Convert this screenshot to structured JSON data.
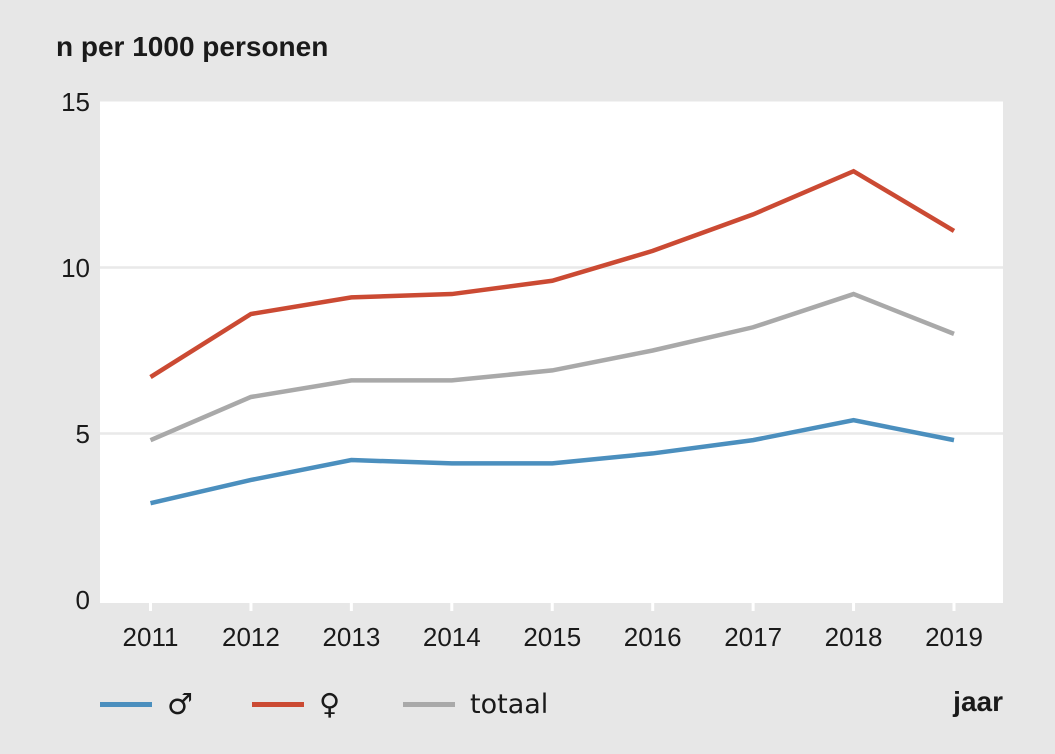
{
  "chart_data": {
    "type": "line",
    "title": "n per 1000 personen",
    "xlabel": "jaar",
    "ylabel": "",
    "x": [
      2011,
      2012,
      2013,
      2014,
      2015,
      2016,
      2017,
      2018,
      2019
    ],
    "series": [
      {
        "name": "♂",
        "description": "mannen",
        "color": "#4b8fbe",
        "values": [
          2.9,
          3.6,
          4.2,
          4.1,
          4.1,
          4.4,
          4.8,
          5.4,
          4.8
        ]
      },
      {
        "name": "♀",
        "description": "vrouwen",
        "color": "#cb4a33",
        "values": [
          6.7,
          8.6,
          9.1,
          9.2,
          9.6,
          10.5,
          11.6,
          12.9,
          11.1
        ]
      },
      {
        "name": "totaal",
        "description": "totaal",
        "color": "#a9a9a9",
        "values": [
          4.8,
          6.1,
          6.6,
          6.6,
          6.9,
          7.5,
          8.2,
          9.2,
          8.0
        ]
      }
    ],
    "ylim": [
      0,
      15
    ],
    "y_ticks": [
      0,
      5,
      10,
      15
    ],
    "grid": true,
    "legend_position": "bottom"
  },
  "colors": {
    "background": "#e7e7e7",
    "plot_background": "#ffffff",
    "gridline": "#e9e9e9",
    "tick_mark": "#ffffff",
    "text": "#1a1a1a"
  }
}
